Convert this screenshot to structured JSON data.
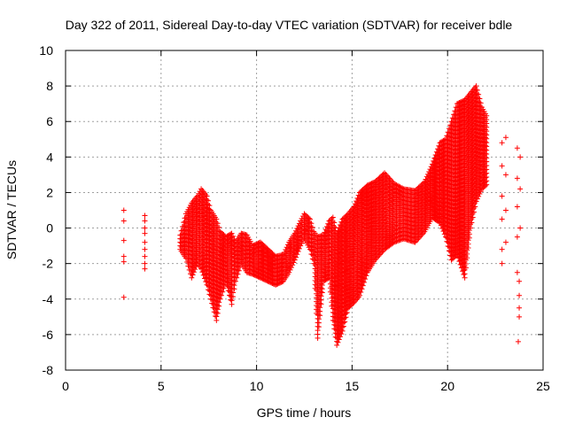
{
  "chart_data": {
    "type": "scatter",
    "title": "Day 322 of 2011, Sidereal Day-to-day VTEC variation (SDTVAR) for receiver bdle",
    "xlabel": "GPS time / hours",
    "ylabel": "SDTVAR / TECUs",
    "xlim": [
      0,
      25
    ],
    "ylim": [
      -8,
      10
    ],
    "x_ticks": [
      "0",
      "5",
      "10",
      "15",
      "20",
      "25"
    ],
    "y_ticks": [
      "-8",
      "-6",
      "-4",
      "-2",
      "0",
      "2",
      "4",
      "6",
      "8",
      "10"
    ],
    "grid": true,
    "marker": "+",
    "color": "#ff0000",
    "series": [
      {
        "envelope": [
          [
            6.0,
            -1.2,
            -0.4
          ],
          [
            6.3,
            -1.7,
            0.8
          ],
          [
            6.6,
            -2.8,
            1.4
          ],
          [
            6.9,
            -2.0,
            1.8
          ],
          [
            7.1,
            -2.3,
            2.2
          ],
          [
            7.4,
            -3.2,
            1.8
          ],
          [
            7.6,
            -4.0,
            1.0
          ],
          [
            7.9,
            -5.2,
            0.5
          ],
          [
            8.1,
            -4.0,
            -0.2
          ],
          [
            8.4,
            -3.0,
            -0.5
          ],
          [
            8.7,
            -4.3,
            -0.3
          ],
          [
            8.9,
            -3.0,
            -0.8
          ],
          [
            9.2,
            -2.0,
            -0.3
          ],
          [
            9.5,
            -2.5,
            -0.4
          ],
          [
            9.8,
            -2.6,
            -1.0
          ],
          [
            10.2,
            -2.8,
            -0.8
          ],
          [
            10.6,
            -3.0,
            -1.2
          ],
          [
            11.0,
            -3.2,
            -1.6
          ],
          [
            11.4,
            -3.0,
            -1.5
          ],
          [
            11.7,
            -2.5,
            -0.8
          ],
          [
            12.0,
            -1.8,
            -0.3
          ],
          [
            12.3,
            -1.0,
            0.4
          ],
          [
            12.5,
            -0.6,
            0.8
          ],
          [
            12.8,
            -1.2,
            0.5
          ],
          [
            13.0,
            -2.0,
            -0.2
          ],
          [
            13.2,
            -6.2,
            -0.5
          ],
          [
            13.5,
            -3.0,
            -0.4
          ],
          [
            13.8,
            -2.8,
            0.4
          ],
          [
            14.0,
            -5.2,
            0.6
          ],
          [
            14.2,
            -6.6,
            -0.3
          ],
          [
            14.5,
            -5.8,
            0.5
          ],
          [
            14.8,
            -4.5,
            0.8
          ],
          [
            15.1,
            -4.2,
            1.2
          ],
          [
            15.4,
            -3.8,
            2.0
          ],
          [
            15.8,
            -2.5,
            2.4
          ],
          [
            16.2,
            -1.8,
            2.6
          ],
          [
            16.7,
            -1.2,
            3.1
          ],
          [
            17.2,
            -0.8,
            2.5
          ],
          [
            17.7,
            -0.6,
            2.2
          ],
          [
            18.3,
            -0.8,
            2.1
          ],
          [
            18.8,
            -0.2,
            2.6
          ],
          [
            19.2,
            0.6,
            3.6
          ],
          [
            19.6,
            0.3,
            4.8
          ],
          [
            19.9,
            -0.5,
            5.0
          ],
          [
            20.2,
            -1.8,
            6.0
          ],
          [
            20.5,
            -1.5,
            7.0
          ],
          [
            20.9,
            -2.8,
            7.2
          ],
          [
            21.2,
            0.0,
            7.6
          ],
          [
            21.5,
            1.5,
            8.0
          ],
          [
            21.8,
            2.2,
            6.8
          ],
          [
            22.1,
            2.5,
            6.2
          ]
        ],
        "isolated": [
          [
            3.05,
            1.0
          ],
          [
            3.05,
            0.4
          ],
          [
            3.05,
            -0.7
          ],
          [
            3.05,
            -1.6
          ],
          [
            3.05,
            -1.9
          ],
          [
            3.05,
            -3.9
          ],
          [
            4.15,
            0.7
          ],
          [
            4.15,
            0.4
          ],
          [
            4.15,
            0.0
          ],
          [
            4.15,
            -0.3
          ],
          [
            4.15,
            -0.8
          ],
          [
            4.15,
            -1.2
          ],
          [
            4.15,
            -1.6
          ],
          [
            4.15,
            -2.0
          ],
          [
            4.15,
            -2.3
          ],
          [
            22.85,
            4.8
          ],
          [
            22.85,
            3.5
          ],
          [
            22.85,
            1.8
          ],
          [
            22.85,
            0.5
          ],
          [
            22.85,
            -1.2
          ],
          [
            22.85,
            -2.0
          ],
          [
            23.05,
            5.1
          ],
          [
            23.05,
            3.0
          ],
          [
            23.05,
            1.0
          ],
          [
            23.05,
            -0.8
          ],
          [
            23.65,
            4.5
          ],
          [
            23.65,
            2.8
          ],
          [
            23.65,
            1.2
          ],
          [
            23.65,
            -0.5
          ],
          [
            23.65,
            -2.5
          ],
          [
            23.75,
            -3.0
          ],
          [
            23.75,
            -3.8
          ],
          [
            23.75,
            -4.5
          ],
          [
            23.75,
            -5.0
          ],
          [
            23.7,
            -6.4
          ],
          [
            23.8,
            4.0
          ],
          [
            23.8,
            2.2
          ],
          [
            23.8,
            0.0
          ]
        ]
      }
    ]
  }
}
